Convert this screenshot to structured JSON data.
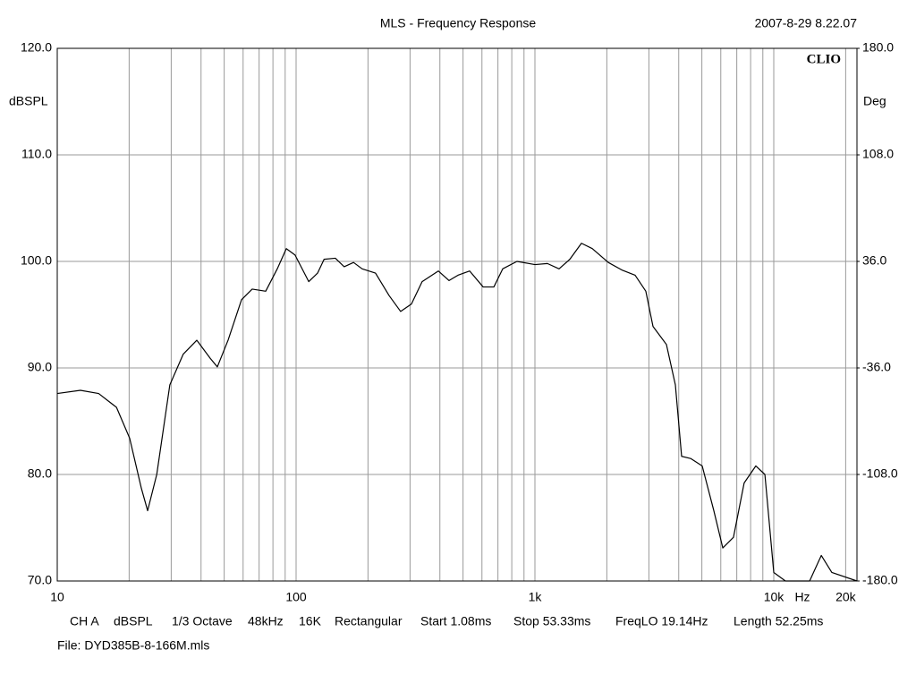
{
  "chart_data": {
    "type": "line",
    "title": "MLS - Frequency Response",
    "timestamp": "2007-8-29 8.22.07",
    "brand": "CLIO",
    "y_axis_label": "dBSPL",
    "y2_axis_label": "Deg",
    "x_unit_label": "Hz",
    "log_x": true,
    "grid": true,
    "xlim": [
      10,
      22300
    ],
    "ylim": [
      70,
      120
    ],
    "y2lim": [
      -180,
      180
    ],
    "xticks": [
      10,
      100,
      {
        "value": 1000,
        "label": "1k"
      },
      {
        "value": 10000,
        "label": "10k"
      },
      {
        "value": 20000,
        "label": "20k"
      }
    ],
    "x_minor_ticks": [
      20,
      30,
      40,
      50,
      60,
      70,
      80,
      90,
      200,
      300,
      400,
      500,
      600,
      700,
      800,
      900,
      2000,
      3000,
      4000,
      5000,
      6000,
      7000,
      8000,
      9000
    ],
    "yticks": [
      {
        "value": 70,
        "label": "70.0"
      },
      {
        "value": 80,
        "label": "80.0"
      },
      {
        "value": 90,
        "label": "90.0"
      },
      {
        "value": 100,
        "label": "100.0"
      },
      {
        "value": 110,
        "label": "110.0"
      },
      {
        "value": 120,
        "label": "120.0"
      }
    ],
    "y2ticks": [
      {
        "value": -180,
        "label": "-180.0"
      },
      {
        "value": -108,
        "label": "-108.0"
      },
      {
        "value": -36,
        "label": "-36.0"
      },
      {
        "value": 36,
        "label": "36.0"
      },
      {
        "value": 108,
        "label": "108.0"
      },
      {
        "value": 180,
        "label": "180.0"
      }
    ],
    "series": [
      {
        "name": "CH A",
        "color": "#000000",
        "x": [
          10,
          12.5,
          14.9,
          17.7,
          20.1,
          22.5,
          23.9,
          26.1,
          29.6,
          33.7,
          38.4,
          43.7,
          46.8,
          51.9,
          59.1,
          65.5,
          74.6,
          83.4,
          91,
          99,
          113,
          123,
          131,
          146,
          159,
          174,
          189,
          215,
          245,
          274,
          304,
          337,
          394,
          437,
          476,
          533,
          607,
          673,
          733,
          841,
          1000,
          1128,
          1262,
          1400,
          1566,
          1738,
          2029,
          2309,
          2627,
          2913,
          3121,
          3553,
          3873,
          4113,
          4487,
          5016,
          5610,
          6118,
          6780,
          7515,
          8409,
          9180,
          10000,
          11190,
          14130,
          15810,
          17500,
          22300
        ],
        "values": [
          87.6,
          87.9,
          87.6,
          86.3,
          83.4,
          78.7,
          76.6,
          80.0,
          88.4,
          91.3,
          92.6,
          90.9,
          90.1,
          92.6,
          96.4,
          97.4,
          97.2,
          99.3,
          101.2,
          100.6,
          98.1,
          98.9,
          100.2,
          100.3,
          99.5,
          99.9,
          99.3,
          98.9,
          96.8,
          95.3,
          96.0,
          98.1,
          99.1,
          98.2,
          98.7,
          99.1,
          97.6,
          97.6,
          99.3,
          100.0,
          99.7,
          99.8,
          99.3,
          100.2,
          101.7,
          101.2,
          99.9,
          99.2,
          98.7,
          97.2,
          93.9,
          92.2,
          88.4,
          81.7,
          81.5,
          80.8,
          76.6,
          73.1,
          74.1,
          79.2,
          80.8,
          80.0,
          70.8,
          70.0,
          70.0,
          72.4,
          70.8,
          70.0
        ]
      }
    ],
    "footer_items": [
      "CH A",
      "dBSPL",
      "1/3 Octave",
      "48kHz",
      "16K",
      "Rectangular",
      "Start 1.08ms",
      "Stop 53.33ms",
      "FreqLO 19.14Hz",
      "Length 52.25ms"
    ],
    "file_label": "File: DYD385B-8-166M.mls"
  }
}
